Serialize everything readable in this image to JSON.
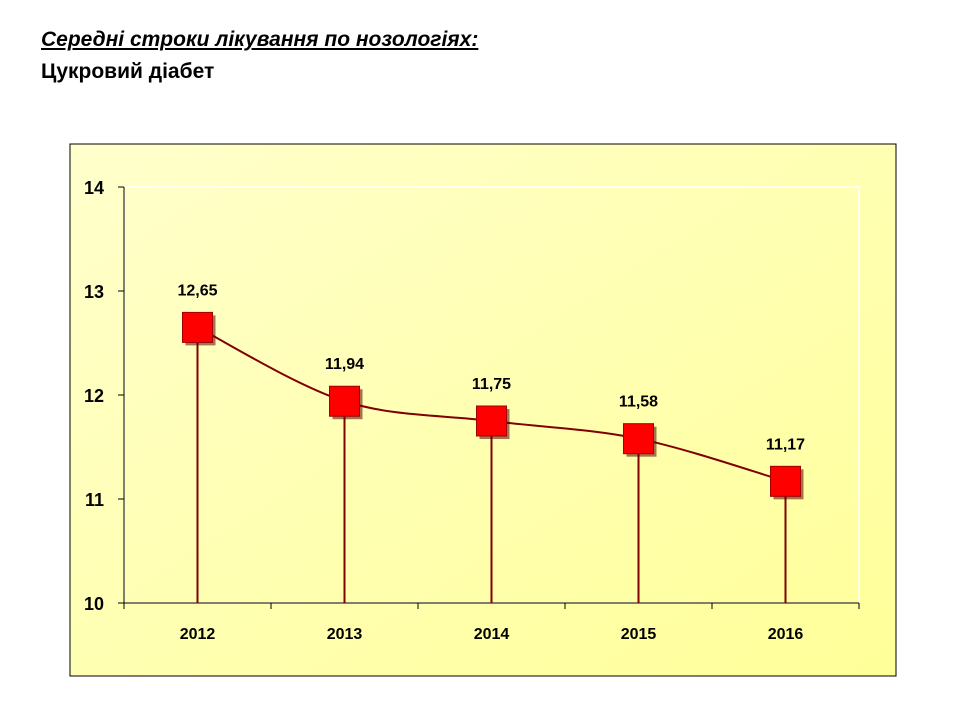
{
  "title": "Середні строки лікування по нозологіях:",
  "subtitle": "Цукровий діабет",
  "colors": {
    "line": "#800000",
    "marker": "#ff0000",
    "plot_bg_start": "#ffffcc",
    "plot_bg_end": "#ffff99"
  },
  "chart_data": {
    "type": "line",
    "categories": [
      "2012",
      "2013",
      "2014",
      "2015",
      "2016"
    ],
    "values": [
      12.65,
      11.94,
      11.75,
      11.58,
      11.17
    ],
    "data_labels": [
      "12,65",
      "11,94",
      "11,75",
      "11,58",
      "11,17"
    ],
    "ylim": [
      10,
      14
    ],
    "yticks": [
      10,
      11,
      12,
      13,
      14
    ],
    "ytick_labels": [
      "10",
      "11",
      "12",
      "13",
      "14"
    ],
    "grid": false,
    "legend": "none",
    "marker": "square",
    "smooth": true,
    "drop_lines": true
  }
}
